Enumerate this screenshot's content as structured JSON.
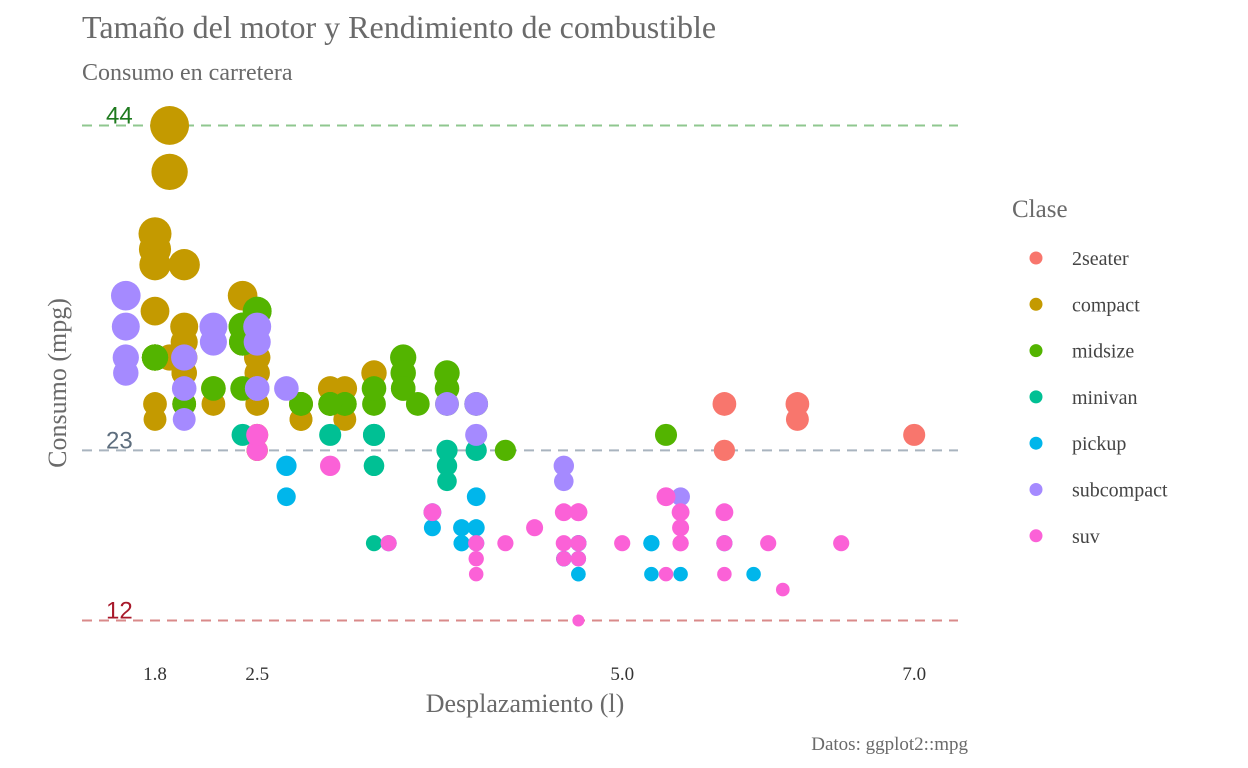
{
  "chart_data": {
    "type": "scatter",
    "title": "Tamaño del motor y Rendimiento de combustible",
    "subtitle": "Consumo en carretera",
    "xlabel": "Desplazamiento (l)",
    "ylabel": "Consumo (mpg)",
    "caption": "Datos: ggplot2::mpg",
    "xlim": [
      1.3,
      7.3
    ],
    "ylim": [
      11,
      45
    ],
    "x_ticks": [
      {
        "value": 1.8,
        "label": "1.8"
      },
      {
        "value": 2.5,
        "label": "2.5"
      },
      {
        "value": 5.0,
        "label": "5.0"
      },
      {
        "value": 7.0,
        "label": "7.0"
      }
    ],
    "grid": false,
    "point_size_encodes": "hwy",
    "reference_lines": [
      {
        "value": 44,
        "label": "44",
        "color": "#1e7a1e",
        "line_color": "#8fc78f"
      },
      {
        "value": 23,
        "label": "23",
        "color": "#5e6e7e",
        "line_color": "#a9b4bf"
      },
      {
        "value": 12,
        "label": "12",
        "color": "#a8192b",
        "line_color": "#d98a8a"
      }
    ],
    "legend": {
      "title": "Clase",
      "placement": "right",
      "entries": [
        {
          "name": "2seater",
          "color": "#F8766D"
        },
        {
          "name": "compact",
          "color": "#C49A00"
        },
        {
          "name": "midsize",
          "color": "#53B400"
        },
        {
          "name": "minivan",
          "color": "#00C094"
        },
        {
          "name": "pickup",
          "color": "#00B6EB"
        },
        {
          "name": "subcompact",
          "color": "#A58AFF"
        },
        {
          "name": "suv",
          "color": "#FB61D7"
        }
      ]
    },
    "series": [
      {
        "name": "2seater",
        "points": [
          [
            5.7,
            26
          ],
          [
            5.7,
            23
          ],
          [
            6.2,
            26
          ],
          [
            6.2,
            25
          ],
          [
            7.0,
            24
          ]
        ]
      },
      {
        "name": "compact",
        "points": [
          [
            1.8,
            29
          ],
          [
            1.8,
            29
          ],
          [
            2.0,
            31
          ],
          [
            2.0,
            30
          ],
          [
            2.8,
            26
          ],
          [
            2.8,
            26
          ],
          [
            3.1,
            27
          ],
          [
            1.8,
            26
          ],
          [
            1.8,
            25
          ],
          [
            2.0,
            28
          ],
          [
            2.0,
            28
          ],
          [
            2.8,
            25
          ],
          [
            2.8,
            25
          ],
          [
            3.1,
            25
          ],
          [
            2.2,
            26
          ],
          [
            2.2,
            27
          ],
          [
            2.4,
            30
          ],
          [
            2.4,
            33
          ],
          [
            3.0,
            26
          ],
          [
            3.0,
            27
          ],
          [
            3.3,
            28
          ],
          [
            1.8,
            32
          ],
          [
            1.8,
            29
          ],
          [
            2.0,
            26
          ],
          [
            2.5,
            28
          ],
          [
            2.5,
            29
          ],
          [
            2.8,
            26
          ],
          [
            1.8,
            36
          ],
          [
            1.9,
            44
          ],
          [
            1.9,
            41
          ],
          [
            2.0,
            29
          ],
          [
            2.0,
            26
          ],
          [
            1.9,
            29
          ],
          [
            2.5,
            24
          ],
          [
            2.5,
            23
          ],
          [
            2.0,
            35
          ],
          [
            2.0,
            29
          ],
          [
            2.5,
            29
          ],
          [
            1.8,
            35
          ],
          [
            1.8,
            37
          ],
          [
            2.5,
            23
          ],
          [
            2.5,
            26
          ]
        ]
      },
      {
        "name": "midsize",
        "points": [
          [
            2.8,
            26
          ],
          [
            3.1,
            26
          ],
          [
            4.2,
            23
          ],
          [
            2.4,
            27
          ],
          [
            2.4,
            30
          ],
          [
            3.1,
            26
          ],
          [
            3.5,
            29
          ],
          [
            3.6,
            26
          ],
          [
            3.0,
            26
          ],
          [
            3.3,
            26
          ],
          [
            2.4,
            31
          ],
          [
            2.4,
            30
          ],
          [
            3.0,
            26
          ],
          [
            3.5,
            28
          ],
          [
            3.3,
            27
          ],
          [
            3.8,
            27
          ],
          [
            3.8,
            26
          ],
          [
            4.0,
            26
          ],
          [
            5.3,
            24
          ],
          [
            1.8,
            29
          ],
          [
            2.2,
            27
          ],
          [
            2.4,
            31
          ],
          [
            2.4,
            31
          ],
          [
            3.0,
            26
          ],
          [
            3.5,
            27
          ],
          [
            2.5,
            32
          ],
          [
            2.5,
            32
          ],
          [
            1.8,
            29
          ],
          [
            1.8,
            29
          ],
          [
            2.8,
            26
          ],
          [
            3.5,
            27
          ],
          [
            3.8,
            28
          ],
          [
            2.0,
            26
          ]
        ]
      },
      {
        "name": "minivan",
        "points": [
          [
            2.4,
            24
          ],
          [
            3.0,
            24
          ],
          [
            3.3,
            22
          ],
          [
            3.3,
            22
          ],
          [
            3.3,
            24
          ],
          [
            3.3,
            24
          ],
          [
            3.3,
            17
          ],
          [
            3.8,
            22
          ],
          [
            3.8,
            21
          ],
          [
            3.8,
            23
          ],
          [
            4.0,
            23
          ]
        ]
      },
      {
        "name": "pickup",
        "points": [
          [
            3.7,
            19
          ],
          [
            3.7,
            18
          ],
          [
            3.9,
            17
          ],
          [
            3.9,
            17
          ],
          [
            4.7,
            17
          ],
          [
            4.7,
            15
          ],
          [
            4.7,
            17
          ],
          [
            5.2,
            17
          ],
          [
            5.2,
            15
          ],
          [
            3.9,
            18
          ],
          [
            4.7,
            15
          ],
          [
            4.7,
            16
          ],
          [
            5.2,
            17
          ],
          [
            5.7,
            17
          ],
          [
            5.9,
            15
          ],
          [
            4.6,
            16
          ],
          [
            5.4,
            15
          ],
          [
            2.7,
            20
          ],
          [
            2.7,
            22
          ],
          [
            3.4,
            17
          ],
          [
            4.0,
            20
          ],
          [
            4.0,
            17
          ],
          [
            4.0,
            18
          ],
          [
            4.6,
            16
          ]
        ]
      },
      {
        "name": "subcompact",
        "points": [
          [
            2.2,
            30
          ],
          [
            2.2,
            31
          ],
          [
            2.5,
            30
          ],
          [
            2.5,
            27
          ],
          [
            4.0,
            26
          ],
          [
            4.0,
            24
          ],
          [
            4.6,
            22
          ],
          [
            4.6,
            21
          ],
          [
            5.4,
            20
          ],
          [
            1.6,
            28
          ],
          [
            1.6,
            31
          ],
          [
            1.6,
            29
          ],
          [
            1.6,
            33
          ],
          [
            2.0,
            25
          ],
          [
            2.0,
            27
          ],
          [
            2.0,
            29
          ],
          [
            3.8,
            26
          ],
          [
            2.5,
            27
          ],
          [
            2.5,
            31
          ],
          [
            2.7,
            27
          ]
        ]
      },
      {
        "name": "suv",
        "points": [
          [
            5.3,
            20
          ],
          [
            5.3,
            15
          ],
          [
            5.3,
            20
          ],
          [
            5.7,
            17
          ],
          [
            6.0,
            17
          ],
          [
            5.7,
            19
          ],
          [
            6.5,
            17
          ],
          [
            5.4,
            17
          ],
          [
            5.4,
            18
          ],
          [
            4.7,
            12
          ],
          [
            4.7,
            17
          ],
          [
            5.7,
            15
          ],
          [
            6.1,
            14
          ],
          [
            5.4,
            17
          ],
          [
            5.4,
            19
          ],
          [
            4.0,
            16
          ],
          [
            4.6,
            17
          ],
          [
            4.7,
            19
          ],
          [
            4.6,
            19
          ],
          [
            2.5,
            23
          ],
          [
            2.5,
            24
          ],
          [
            4.0,
            17
          ],
          [
            3.4,
            17
          ],
          [
            3.7,
            19
          ],
          [
            4.0,
            15
          ],
          [
            4.2,
            17
          ],
          [
            4.6,
            16
          ],
          [
            4.7,
            16
          ],
          [
            5.0,
            17
          ],
          [
            4.7,
            19
          ],
          [
            3.0,
            22
          ],
          [
            4.4,
            18
          ]
        ]
      }
    ]
  }
}
